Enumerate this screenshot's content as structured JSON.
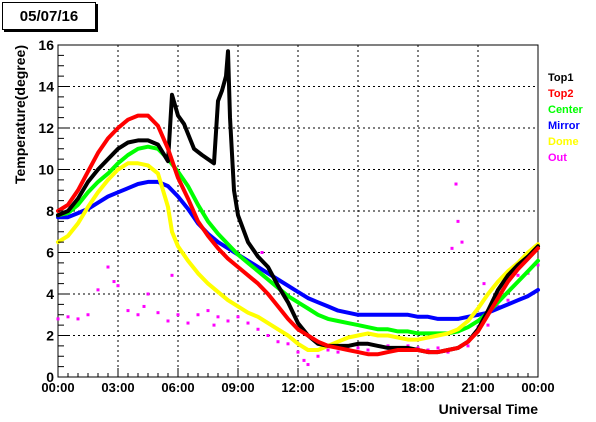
{
  "chart_data": {
    "type": "scatter",
    "title": "05/07/16",
    "xlabel": "Universal Time",
    "ylabel": "Temperature(degree)",
    "xlim": [
      0,
      24
    ],
    "ylim": [
      0,
      16
    ],
    "x_unit": "hours UTC",
    "x_tick_labels": [
      "00:00",
      "03:00",
      "06:00",
      "09:00",
      "12:00",
      "15:00",
      "18:00",
      "21:00",
      "00:00"
    ],
    "y_tick_labels": [
      "0",
      "2",
      "4",
      "6",
      "8",
      "10",
      "12",
      "14",
      "16"
    ],
    "grid": true,
    "legend_position": "right",
    "series": [
      {
        "name": "Top1",
        "color": "#000000",
        "points": [
          [
            0,
            7.8
          ],
          [
            0.5,
            8.0
          ],
          [
            1.0,
            8.6
          ],
          [
            1.5,
            9.4
          ],
          [
            2.0,
            10.0
          ],
          [
            2.5,
            10.5
          ],
          [
            3.0,
            11.0
          ],
          [
            3.5,
            11.3
          ],
          [
            4.0,
            11.4
          ],
          [
            4.5,
            11.4
          ],
          [
            5.0,
            11.2
          ],
          [
            5.5,
            10.4
          ],
          [
            5.7,
            13.6
          ],
          [
            6.0,
            12.6
          ],
          [
            6.3,
            12.2
          ],
          [
            6.8,
            11.0
          ],
          [
            7.2,
            10.7
          ],
          [
            7.8,
            10.3
          ],
          [
            8.0,
            13.3
          ],
          [
            8.2,
            13.8
          ],
          [
            8.4,
            14.5
          ],
          [
            8.5,
            15.7
          ],
          [
            8.6,
            12.5
          ],
          [
            8.8,
            9.0
          ],
          [
            9.0,
            7.8
          ],
          [
            9.5,
            6.5
          ],
          [
            10.0,
            5.8
          ],
          [
            10.5,
            5.3
          ],
          [
            11.0,
            4.4
          ],
          [
            11.5,
            3.6
          ],
          [
            12.0,
            2.6
          ],
          [
            12.5,
            2.0
          ],
          [
            13.0,
            1.6
          ],
          [
            13.5,
            1.5
          ],
          [
            14.0,
            1.5
          ],
          [
            14.5,
            1.5
          ],
          [
            15.0,
            1.6
          ],
          [
            15.5,
            1.6
          ],
          [
            16.0,
            1.5
          ],
          [
            16.5,
            1.4
          ],
          [
            17.0,
            1.4
          ],
          [
            17.5,
            1.4
          ],
          [
            18.0,
            1.3
          ],
          [
            18.5,
            1.2
          ],
          [
            19.0,
            1.2
          ],
          [
            19.5,
            1.3
          ],
          [
            20.0,
            1.4
          ],
          [
            20.5,
            1.7
          ],
          [
            21.0,
            2.3
          ],
          [
            21.5,
            3.2
          ],
          [
            22.0,
            4.2
          ],
          [
            22.5,
            4.9
          ],
          [
            23.0,
            5.4
          ],
          [
            23.5,
            5.8
          ],
          [
            24.0,
            6.3
          ]
        ]
      },
      {
        "name": "Top2",
        "color": "#ff0000",
        "points": [
          [
            0,
            8.0
          ],
          [
            0.5,
            8.3
          ],
          [
            1.0,
            9.0
          ],
          [
            1.5,
            9.9
          ],
          [
            2.0,
            10.8
          ],
          [
            2.5,
            11.5
          ],
          [
            3.0,
            12.0
          ],
          [
            3.5,
            12.4
          ],
          [
            4.0,
            12.6
          ],
          [
            4.5,
            12.6
          ],
          [
            5.0,
            12.1
          ],
          [
            5.5,
            11.0
          ],
          [
            6.0,
            9.6
          ],
          [
            6.5,
            8.6
          ],
          [
            7.0,
            7.5
          ],
          [
            7.5,
            6.8
          ],
          [
            8.0,
            6.2
          ],
          [
            8.5,
            5.7
          ],
          [
            9.0,
            5.3
          ],
          [
            9.5,
            4.9
          ],
          [
            10.0,
            4.5
          ],
          [
            10.5,
            4.0
          ],
          [
            11.0,
            3.4
          ],
          [
            11.5,
            2.8
          ],
          [
            12.0,
            2.3
          ],
          [
            12.5,
            2.0
          ],
          [
            13.0,
            1.7
          ],
          [
            13.5,
            1.5
          ],
          [
            14.0,
            1.4
          ],
          [
            14.5,
            1.3
          ],
          [
            15.0,
            1.2
          ],
          [
            15.5,
            1.1
          ],
          [
            16.0,
            1.1
          ],
          [
            16.5,
            1.2
          ],
          [
            17.0,
            1.3
          ],
          [
            17.5,
            1.3
          ],
          [
            18.0,
            1.3
          ],
          [
            18.5,
            1.2
          ],
          [
            19.0,
            1.2
          ],
          [
            19.5,
            1.3
          ],
          [
            20.0,
            1.4
          ],
          [
            20.5,
            1.7
          ],
          [
            21.0,
            2.2
          ],
          [
            21.5,
            3.0
          ],
          [
            22.0,
            3.8
          ],
          [
            22.5,
            4.6
          ],
          [
            23.0,
            5.2
          ],
          [
            23.5,
            5.7
          ],
          [
            24.0,
            6.2
          ]
        ]
      },
      {
        "name": "Center",
        "color": "#00ff00",
        "points": [
          [
            0,
            7.8
          ],
          [
            0.5,
            7.9
          ],
          [
            1.0,
            8.3
          ],
          [
            1.5,
            8.9
          ],
          [
            2.0,
            9.4
          ],
          [
            2.5,
            9.8
          ],
          [
            3.0,
            10.3
          ],
          [
            3.5,
            10.7
          ],
          [
            4.0,
            11.0
          ],
          [
            4.5,
            11.1
          ],
          [
            5.0,
            11.0
          ],
          [
            5.5,
            10.5
          ],
          [
            6.0,
            9.9
          ],
          [
            6.5,
            9.2
          ],
          [
            7.0,
            8.3
          ],
          [
            7.5,
            7.5
          ],
          [
            8.0,
            6.9
          ],
          [
            8.5,
            6.4
          ],
          [
            9.0,
            5.9
          ],
          [
            9.5,
            5.5
          ],
          [
            10.0,
            5.1
          ],
          [
            10.5,
            4.7
          ],
          [
            11.0,
            4.3
          ],
          [
            11.5,
            3.9
          ],
          [
            12.0,
            3.6
          ],
          [
            12.5,
            3.3
          ],
          [
            13.0,
            3.0
          ],
          [
            13.5,
            2.8
          ],
          [
            14.0,
            2.7
          ],
          [
            14.5,
            2.6
          ],
          [
            15.0,
            2.5
          ],
          [
            15.5,
            2.4
          ],
          [
            16.0,
            2.3
          ],
          [
            16.5,
            2.3
          ],
          [
            17.0,
            2.2
          ],
          [
            17.5,
            2.2
          ],
          [
            18.0,
            2.1
          ],
          [
            18.5,
            2.1
          ],
          [
            19.0,
            2.1
          ],
          [
            19.5,
            2.1
          ],
          [
            20.0,
            2.2
          ],
          [
            20.5,
            2.4
          ],
          [
            21.0,
            2.7
          ],
          [
            21.5,
            3.1
          ],
          [
            22.0,
            3.6
          ],
          [
            22.5,
            4.1
          ],
          [
            23.0,
            4.6
          ],
          [
            23.5,
            5.1
          ],
          [
            24.0,
            5.6
          ]
        ]
      },
      {
        "name": "Mirror",
        "color": "#0000ff",
        "points": [
          [
            0,
            7.7
          ],
          [
            0.5,
            7.7
          ],
          [
            1.0,
            7.9
          ],
          [
            1.5,
            8.1
          ],
          [
            2.0,
            8.4
          ],
          [
            2.5,
            8.7
          ],
          [
            3.0,
            8.9
          ],
          [
            3.5,
            9.1
          ],
          [
            4.0,
            9.3
          ],
          [
            4.5,
            9.4
          ],
          [
            5.0,
            9.4
          ],
          [
            5.5,
            9.2
          ],
          [
            6.0,
            8.7
          ],
          [
            6.5,
            8.1
          ],
          [
            7.0,
            7.4
          ],
          [
            7.5,
            6.9
          ],
          [
            8.0,
            6.5
          ],
          [
            8.5,
            6.2
          ],
          [
            9.0,
            5.9
          ],
          [
            9.5,
            5.6
          ],
          [
            10.0,
            5.3
          ],
          [
            10.5,
            5.0
          ],
          [
            11.0,
            4.7
          ],
          [
            11.5,
            4.4
          ],
          [
            12.0,
            4.1
          ],
          [
            12.5,
            3.8
          ],
          [
            13.0,
            3.6
          ],
          [
            13.5,
            3.4
          ],
          [
            14.0,
            3.2
          ],
          [
            14.5,
            3.1
          ],
          [
            15.0,
            3.0
          ],
          [
            15.5,
            3.0
          ],
          [
            16.0,
            3.0
          ],
          [
            16.5,
            3.0
          ],
          [
            17.0,
            3.0
          ],
          [
            17.5,
            3.0
          ],
          [
            18.0,
            2.9
          ],
          [
            18.5,
            2.9
          ],
          [
            19.0,
            2.8
          ],
          [
            19.5,
            2.8
          ],
          [
            20.0,
            2.8
          ],
          [
            20.5,
            2.9
          ],
          [
            21.0,
            3.0
          ],
          [
            21.5,
            3.1
          ],
          [
            22.0,
            3.3
          ],
          [
            22.5,
            3.5
          ],
          [
            23.0,
            3.7
          ],
          [
            23.5,
            3.9
          ],
          [
            24.0,
            4.2
          ]
        ]
      },
      {
        "name": "Dome",
        "color": "#ffff00",
        "points": [
          [
            0,
            6.5
          ],
          [
            0.5,
            6.8
          ],
          [
            1.0,
            7.4
          ],
          [
            1.5,
            8.2
          ],
          [
            2.0,
            8.9
          ],
          [
            2.5,
            9.5
          ],
          [
            3.0,
            10.0
          ],
          [
            3.5,
            10.3
          ],
          [
            4.0,
            10.3
          ],
          [
            4.5,
            10.2
          ],
          [
            5.0,
            9.8
          ],
          [
            5.5,
            8.2
          ],
          [
            5.7,
            7.0
          ],
          [
            6.0,
            6.3
          ],
          [
            6.5,
            5.6
          ],
          [
            7.0,
            5.0
          ],
          [
            7.5,
            4.5
          ],
          [
            8.0,
            4.1
          ],
          [
            8.5,
            3.7
          ],
          [
            9.0,
            3.4
          ],
          [
            9.5,
            3.1
          ],
          [
            10.0,
            2.9
          ],
          [
            10.5,
            2.6
          ],
          [
            11.0,
            2.3
          ],
          [
            11.5,
            2.0
          ],
          [
            12.0,
            1.6
          ],
          [
            12.5,
            1.3
          ],
          [
            13.0,
            1.3
          ],
          [
            13.5,
            1.5
          ],
          [
            14.0,
            1.7
          ],
          [
            14.5,
            1.9
          ],
          [
            15.0,
            2.0
          ],
          [
            15.5,
            2.1
          ],
          [
            16.0,
            2.0
          ],
          [
            16.5,
            2.0
          ],
          [
            17.0,
            1.9
          ],
          [
            17.5,
            1.8
          ],
          [
            18.0,
            1.8
          ],
          [
            18.5,
            1.9
          ],
          [
            19.0,
            2.0
          ],
          [
            19.5,
            2.1
          ],
          [
            20.0,
            2.3
          ],
          [
            20.5,
            2.7
          ],
          [
            21.0,
            3.3
          ],
          [
            21.5,
            4.0
          ],
          [
            22.0,
            4.6
          ],
          [
            22.5,
            5.1
          ],
          [
            23.0,
            5.5
          ],
          [
            23.5,
            6.0
          ],
          [
            24.0,
            6.4
          ]
        ]
      },
      {
        "name": "Out",
        "color": "#ff00ff",
        "points": [
          [
            0,
            2.8
          ],
          [
            0.5,
            2.9
          ],
          [
            1.0,
            2.8
          ],
          [
            1.5,
            3.0
          ],
          [
            2.0,
            4.2
          ],
          [
            2.5,
            5.3
          ],
          [
            2.8,
            4.6
          ],
          [
            3.0,
            4.4
          ],
          [
            3.5,
            3.2
          ],
          [
            4.0,
            3.0
          ],
          [
            4.3,
            3.4
          ],
          [
            4.5,
            4.0
          ],
          [
            5.0,
            3.1
          ],
          [
            5.5,
            2.7
          ],
          [
            5.7,
            4.9
          ],
          [
            6.0,
            3.0
          ],
          [
            6.5,
            2.6
          ],
          [
            7.0,
            3.0
          ],
          [
            7.5,
            3.2
          ],
          [
            7.8,
            2.5
          ],
          [
            8.0,
            2.9
          ],
          [
            8.5,
            2.7
          ],
          [
            9.0,
            2.9
          ],
          [
            9.5,
            2.6
          ],
          [
            10.0,
            2.3
          ],
          [
            10.2,
            6.0
          ],
          [
            10.5,
            2.0
          ],
          [
            11.0,
            1.7
          ],
          [
            11.5,
            1.6
          ],
          [
            12.0,
            1.2
          ],
          [
            12.3,
            0.8
          ],
          [
            12.5,
            0.6
          ],
          [
            13.0,
            1.0
          ],
          [
            13.5,
            1.3
          ],
          [
            14.0,
            1.2
          ],
          [
            14.5,
            1.4
          ],
          [
            15.0,
            1.4
          ],
          [
            15.5,
            1.3
          ],
          [
            16.0,
            1.1
          ],
          [
            16.5,
            1.5
          ],
          [
            17.0,
            1.3
          ],
          [
            17.5,
            1.5
          ],
          [
            18.0,
            1.4
          ],
          [
            18.5,
            1.3
          ],
          [
            19.0,
            1.4
          ],
          [
            19.5,
            1.2
          ],
          [
            19.7,
            6.2
          ],
          [
            19.9,
            9.3
          ],
          [
            20.0,
            7.5
          ],
          [
            20.2,
            6.5
          ],
          [
            20.5,
            1.5
          ],
          [
            21.0,
            2.4
          ],
          [
            21.3,
            4.5
          ],
          [
            21.5,
            2.5
          ],
          [
            22.0,
            3.4
          ],
          [
            22.5,
            3.7
          ],
          [
            23.0,
            4.9
          ],
          [
            23.5,
            5.0
          ],
          [
            24.0,
            5.4
          ]
        ]
      }
    ]
  }
}
